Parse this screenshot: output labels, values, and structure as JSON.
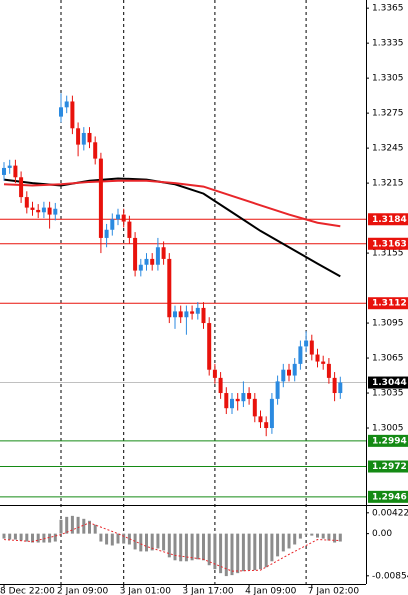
{
  "chart_data": {
    "type": "candlestick",
    "ylim": [
      1.2939,
      1.3372
    ],
    "yticks": [
      1.3365,
      1.3335,
      1.3305,
      1.3275,
      1.3245,
      1.3215,
      1.3155,
      1.3095,
      1.3065,
      1.3035,
      1.3005
    ],
    "up_color": "#2b8ae0",
    "down_color": "#e8120c",
    "categories": [
      "8 Dec 22:00",
      null,
      null,
      null,
      null,
      null,
      null,
      null,
      null,
      null,
      "2 Jan 09:00",
      null,
      null,
      null,
      null,
      null,
      null,
      null,
      null,
      null,
      null,
      "3 Jan 01:00",
      null,
      null,
      null,
      null,
      null,
      null,
      null,
      null,
      null,
      null,
      "3 Jan 17:00",
      null,
      null,
      null,
      null,
      null,
      null,
      null,
      null,
      null,
      null,
      "4 Jan 09:00",
      null,
      null,
      null,
      null,
      null,
      null,
      null,
      null,
      null,
      null,
      "7 Jan 02:00",
      null,
      null,
      null,
      null,
      null
    ],
    "separators": [
      10,
      21,
      37,
      53
    ],
    "open": [
      1.3222,
      1.3228,
      1.323,
      1.322,
      1.3203,
      1.3194,
      1.3192,
      1.319,
      1.3194,
      1.3188,
      1.3272,
      1.328,
      1.3285,
      1.3262,
      1.3248,
      1.3258,
      1.325,
      1.3236,
      1.3168,
      1.3175,
      1.3184,
      1.3188,
      1.3182,
      1.3168,
      1.314,
      1.3145,
      1.315,
      1.3145,
      1.316,
      1.315,
      1.31,
      1.3105,
      1.31,
      1.3105,
      1.3103,
      1.3108,
      1.3095,
      1.3055,
      1.3048,
      1.3035,
      1.3022,
      1.303,
      1.3028,
      1.3035,
      1.303,
      1.3015,
      1.301,
      1.3005,
      1.303,
      1.3045,
      1.3055,
      1.305,
      1.306,
      1.3075,
      1.308,
      1.3068,
      1.3062,
      1.306,
      1.3048,
      1.3035
    ],
    "high": [
      1.3233,
      1.3235,
      1.3235,
      1.3225,
      1.3208,
      1.3199,
      1.3197,
      1.3199,
      1.3199,
      1.3198,
      1.3292,
      1.329,
      1.329,
      1.3267,
      1.3263,
      1.3263,
      1.3255,
      1.3241,
      1.318,
      1.3189,
      1.3193,
      1.3193,
      1.3187,
      1.3173,
      1.315,
      1.3155,
      1.3155,
      1.3168,
      1.3165,
      1.3155,
      1.311,
      1.311,
      1.311,
      1.311,
      1.3113,
      1.3113,
      1.31,
      1.306,
      1.3053,
      1.304,
      1.3035,
      1.3035,
      1.3045,
      1.304,
      1.3035,
      1.302,
      1.3015,
      1.3035,
      1.305,
      1.306,
      1.306,
      1.3065,
      1.308,
      1.3088,
      1.3085,
      1.3073,
      1.3067,
      1.3065,
      1.3053,
      1.3049
    ],
    "low": [
      1.3217,
      1.3223,
      1.3215,
      1.3198,
      1.3189,
      1.3187,
      1.3185,
      1.3185,
      1.3176,
      1.3183,
      1.3267,
      1.3275,
      1.3257,
      1.3238,
      1.3243,
      1.3245,
      1.3231,
      1.3155,
      1.316,
      1.317,
      1.3179,
      1.3177,
      1.3163,
      1.3135,
      1.3135,
      1.314,
      1.314,
      1.314,
      1.3145,
      1.3095,
      1.309,
      1.3095,
      1.3085,
      1.3098,
      1.3098,
      1.309,
      1.305,
      1.3043,
      1.303,
      1.3017,
      1.3017,
      1.302,
      1.3023,
      1.3025,
      1.301,
      1.3005,
      1.2998,
      1.3,
      1.3025,
      1.304,
      1.3045,
      1.3045,
      1.3055,
      1.307,
      1.3063,
      1.3057,
      1.3055,
      1.3043,
      1.3028,
      1.303
    ],
    "close": [
      1.3228,
      1.323,
      1.322,
      1.3203,
      1.3194,
      1.3192,
      1.319,
      1.3194,
      1.3188,
      1.3193,
      1.328,
      1.3285,
      1.3262,
      1.3248,
      1.3258,
      1.325,
      1.3236,
      1.3168,
      1.3175,
      1.3184,
      1.3188,
      1.3182,
      1.3168,
      1.314,
      1.3145,
      1.315,
      1.3145,
      1.316,
      1.315,
      1.31,
      1.3105,
      1.31,
      1.3105,
      1.3103,
      1.3108,
      1.3095,
      1.3055,
      1.3048,
      1.3035,
      1.3022,
      1.303,
      1.3028,
      1.3035,
      1.303,
      1.3015,
      1.301,
      1.3005,
      1.303,
      1.3045,
      1.3055,
      1.305,
      1.306,
      1.3075,
      1.308,
      1.3068,
      1.3062,
      1.306,
      1.3048,
      1.3035,
      1.3044
    ],
    "moving_averages": [
      {
        "color": "#000000",
        "x": [
          0,
          5,
          10,
          15,
          20,
          25,
          30,
          35,
          40,
          45,
          50,
          55,
          59
        ],
        "values": [
          1.3218,
          1.3215,
          1.3213,
          1.3217,
          1.3219,
          1.3218,
          1.3214,
          1.3206,
          1.319,
          1.3174,
          1.316,
          1.3146,
          1.3135
        ]
      },
      {
        "color": "#e8262a",
        "x": [
          0,
          5,
          10,
          15,
          20,
          25,
          30,
          35,
          40,
          45,
          50,
          55,
          59
        ],
        "values": [
          1.3214,
          1.3213,
          1.3214,
          1.3216,
          1.3217,
          1.3217,
          1.3215,
          1.3212,
          1.3204,
          1.3196,
          1.3188,
          1.3181,
          1.3178
        ]
      }
    ],
    "resistance": {
      "color": "#e8120c",
      "values": [
        1.3184,
        1.3163,
        1.3112
      ]
    },
    "support": {
      "color": "#148a14",
      "values": [
        1.2994,
        1.2972,
        1.2946
      ]
    },
    "last_price": 1.3044,
    "oscillator": {
      "ylim": [
        -0.0102,
        0.0058
      ],
      "yticks": [
        0.00422,
        {
          "value": 0,
          "label": "0.00"
        },
        -0.00854
      ],
      "color": "#8c8c8c",
      "values": [
        -0.001,
        -0.0012,
        -0.0012,
        -0.0014,
        -0.0016,
        -0.0018,
        -0.0018,
        -0.0018,
        -0.0018,
        -0.0016,
        0.0028,
        0.0034,
        0.0036,
        0.0034,
        0.003,
        0.0026,
        0.0018,
        -0.0016,
        -0.0022,
        -0.0024,
        -0.002,
        -0.002,
        -0.0022,
        -0.0032,
        -0.0036,
        -0.0036,
        -0.0034,
        -0.003,
        -0.0034,
        -0.0048,
        -0.0054,
        -0.0056,
        -0.0056,
        -0.0054,
        -0.0052,
        -0.0054,
        -0.0064,
        -0.0072,
        -0.008,
        -0.0086,
        -0.0084,
        -0.008,
        -0.0076,
        -0.0074,
        -0.0074,
        -0.0072,
        -0.0068,
        -0.0056,
        -0.0046,
        -0.0036,
        -0.003,
        -0.0022,
        -0.001,
        -0.0002,
        -0.0004,
        -0.0008,
        -0.001,
        -0.0014,
        -0.0018,
        -0.0016
      ],
      "signal": {
        "color": "#e8262a",
        "x": [
          0,
          5,
          10,
          15,
          20,
          25,
          30,
          35,
          40,
          45,
          50,
          55,
          59
        ],
        "values": [
          -0.0012,
          -0.0016,
          -0.0002,
          0.0022,
          0.0,
          -0.0026,
          -0.0044,
          -0.0052,
          -0.0076,
          -0.0074,
          -0.0042,
          -0.0012,
          -0.0014
        ]
      }
    }
  }
}
